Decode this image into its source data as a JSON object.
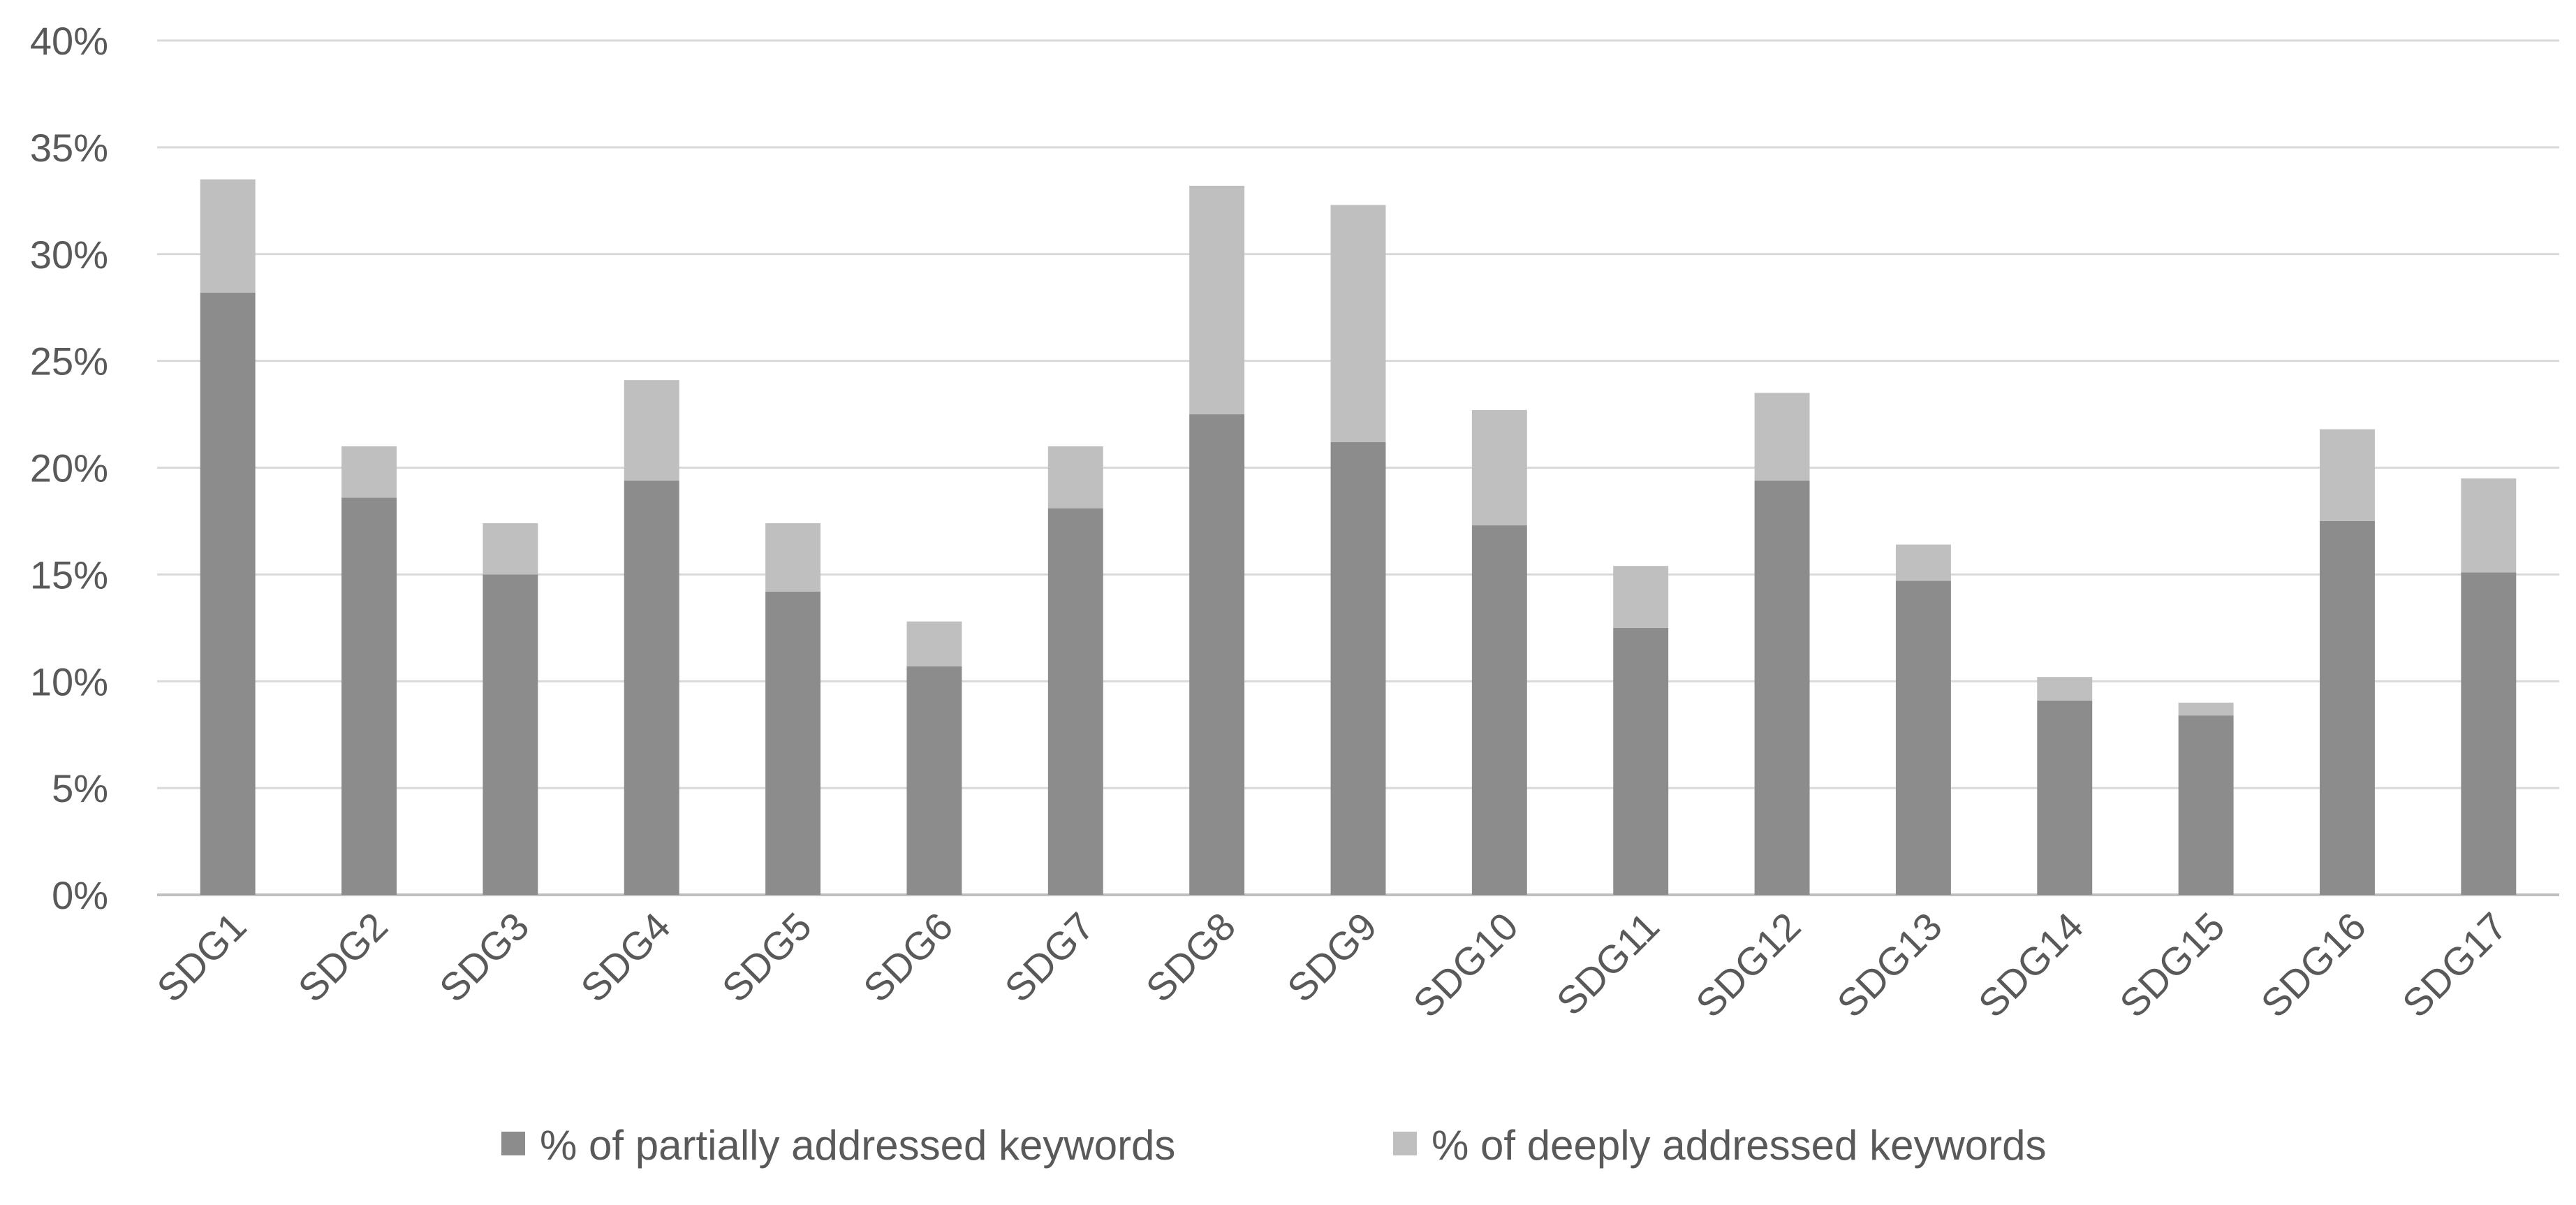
{
  "chart_data": {
    "type": "bar",
    "stacked": true,
    "categories": [
      "SDG1",
      "SDG2",
      "SDG3",
      "SDG4",
      "SDG5",
      "SDG6",
      "SDG7",
      "SDG8",
      "SDG9",
      "SDG10",
      "SDG11",
      "SDG12",
      "SDG13",
      "SDG14",
      "SDG15",
      "SDG16",
      "SDG17"
    ],
    "series": [
      {
        "name": "% of partially addressed keywords",
        "color": "#8c8c8c",
        "values": [
          28.2,
          18.6,
          15.0,
          19.4,
          14.2,
          10.7,
          18.1,
          22.5,
          21.2,
          17.3,
          12.5,
          19.4,
          14.7,
          9.1,
          8.4,
          17.5,
          15.1
        ]
      },
      {
        "name": "% of deeply addressed keywords",
        "color": "#bfbfbf",
        "values": [
          5.3,
          2.4,
          2.4,
          4.7,
          3.2,
          2.1,
          2.9,
          10.7,
          11.1,
          5.4,
          2.9,
          4.1,
          1.7,
          1.1,
          0.6,
          4.3,
          4.4
        ]
      }
    ],
    "yticks": [
      "0%",
      "5%",
      "10%",
      "15%",
      "20%",
      "25%",
      "30%",
      "35%",
      "40%"
    ],
    "ylim": [
      0,
      40
    ],
    "grid": true,
    "legend_position": "bottom",
    "title": "",
    "xlabel": "",
    "ylabel": ""
  }
}
